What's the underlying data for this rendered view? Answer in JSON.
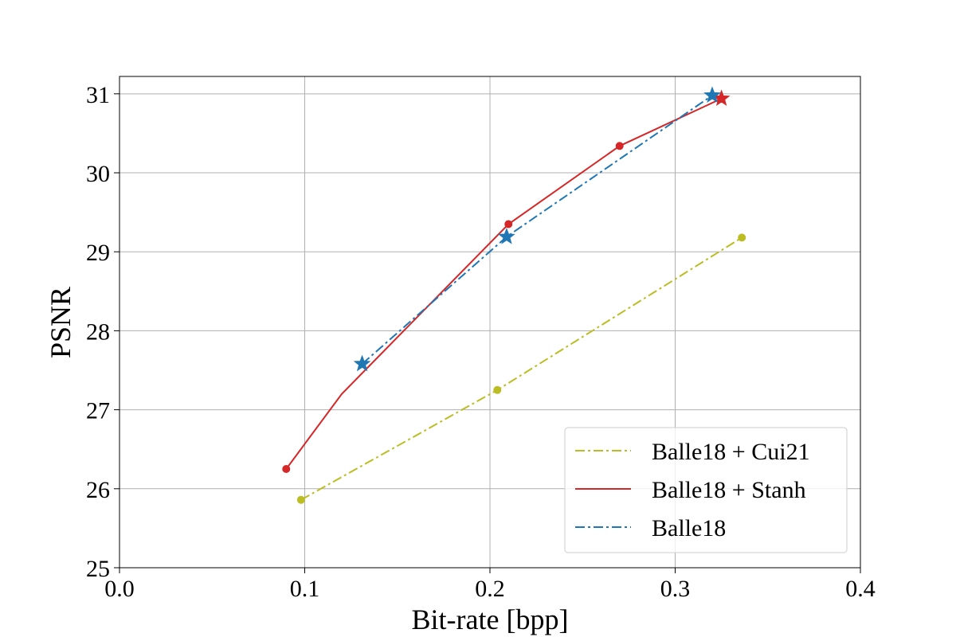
{
  "chart_data": {
    "type": "line",
    "xlabel": "Bit-rate [bpp]",
    "ylabel": "PSNR",
    "xlim": [
      0.0,
      0.4
    ],
    "ylim": [
      25,
      31.22
    ],
    "xticks": [
      0.0,
      0.1,
      0.2,
      0.3,
      0.4
    ],
    "xtick_labels": [
      "0.0",
      "0.1",
      "0.2",
      "0.3",
      "0.4"
    ],
    "yticks": [
      25,
      26,
      27,
      28,
      29,
      30,
      31
    ],
    "ytick_labels": [
      "25",
      "26",
      "27",
      "28",
      "29",
      "30",
      "31"
    ],
    "grid": true,
    "legend_position": "bottom-right",
    "series": [
      {
        "name": "Balle18 + Cui21",
        "color": "#bcbd22",
        "linestyle": "dashdot",
        "x": [
          0.098,
          0.204,
          0.336
        ],
        "y": [
          25.86,
          27.25,
          29.18
        ],
        "markers": [
          {
            "x": 0.098,
            "y": 25.86,
            "shape": "circle"
          },
          {
            "x": 0.204,
            "y": 27.25,
            "shape": "circle"
          },
          {
            "x": 0.336,
            "y": 29.18,
            "shape": "circle"
          }
        ]
      },
      {
        "name": "Balle18 + Stanh",
        "color": "#d62728",
        "linestyle": "solid",
        "x": [
          0.09,
          0.12,
          0.21,
          0.27,
          0.325
        ],
        "y": [
          26.25,
          27.2,
          29.35,
          30.34,
          30.94
        ],
        "markers": [
          {
            "x": 0.09,
            "y": 26.25,
            "shape": "circle"
          },
          {
            "x": 0.21,
            "y": 29.35,
            "shape": "circle"
          },
          {
            "x": 0.27,
            "y": 30.34,
            "shape": "circle"
          },
          {
            "x": 0.325,
            "y": 30.94,
            "shape": "star"
          }
        ]
      },
      {
        "name": "Balle18",
        "color": "#1f77b4",
        "linestyle": "dashdot",
        "x": [
          0.131,
          0.209,
          0.32
        ],
        "y": [
          27.58,
          29.19,
          30.98
        ],
        "markers": [
          {
            "x": 0.131,
            "y": 27.58,
            "shape": "star"
          },
          {
            "x": 0.209,
            "y": 29.19,
            "shape": "star"
          },
          {
            "x": 0.32,
            "y": 30.98,
            "shape": "star"
          }
        ]
      }
    ]
  }
}
